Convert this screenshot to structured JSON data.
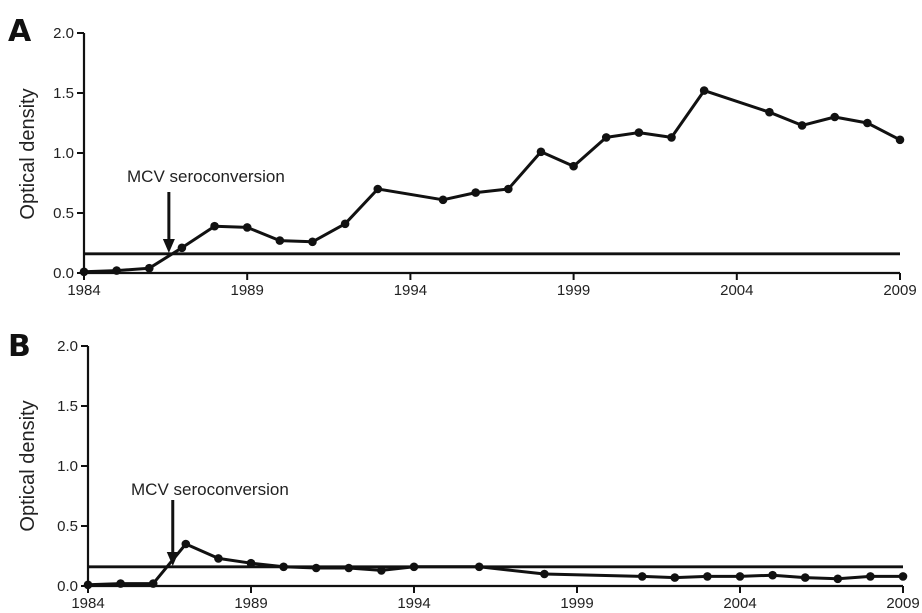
{
  "figure": {
    "panels": [
      {
        "letter": "A",
        "ylabel": "Optical density",
        "annotation": "MCV seroconversion"
      },
      {
        "letter": "B",
        "ylabel": "Optical density",
        "annotation": "MCV seroconversion"
      }
    ]
  },
  "chart_data": [
    {
      "type": "line",
      "panel": "A",
      "title": "",
      "xlabel": "",
      "ylabel": "Optical density",
      "xlim": [
        1984,
        2009
      ],
      "ylim": [
        0,
        2.0
      ],
      "x_ticks": [
        1984,
        1989,
        1994,
        1999,
        2004,
        2009
      ],
      "y_ticks": [
        0.0,
        0.5,
        1.0,
        1.5,
        2.0
      ],
      "x_tick_labels": [
        "1984",
        "1989",
        "1994",
        "1999",
        "2004",
        "2009"
      ],
      "y_tick_labels": [
        "0.0",
        "0.5",
        "1.0",
        "1.5",
        "2.0"
      ],
      "grid": false,
      "threshold": 0.16,
      "annotation": {
        "text": "MCV seroconversion",
        "x": 1986.6
      },
      "series": [
        {
          "x": [
            1984,
            1985,
            1986,
            1987,
            1988,
            1989,
            1990,
            1991,
            1992,
            1993,
            1995,
            1996,
            1997,
            1998,
            1999,
            2000,
            2001,
            2002,
            2003,
            2005,
            2006,
            2007,
            2008,
            2009
          ],
          "y": [
            0.01,
            0.02,
            0.04,
            0.21,
            0.39,
            0.38,
            0.27,
            0.26,
            0.41,
            0.7,
            0.61,
            0.67,
            0.7,
            1.01,
            0.89,
            1.13,
            1.17,
            1.13,
            1.52,
            1.34,
            1.23,
            1.3,
            1.25,
            1.11
          ]
        }
      ]
    },
    {
      "type": "line",
      "panel": "B",
      "title": "",
      "xlabel": "",
      "ylabel": "Optical density",
      "xlim": [
        1984,
        2009
      ],
      "ylim": [
        0,
        2.0
      ],
      "x_ticks": [
        1984,
        1989,
        1994,
        1999,
        2004,
        2009
      ],
      "y_ticks": [
        0.0,
        0.5,
        1.0,
        1.5,
        2.0
      ],
      "x_tick_labels": [
        "1984",
        "1989",
        "1994",
        "1999",
        "2004",
        "2009"
      ],
      "y_tick_labels": [
        "0.0",
        "0.5",
        "1.0",
        "1.5",
        "2.0"
      ],
      "grid": false,
      "threshold": 0.16,
      "annotation": {
        "text": "MCV seroconversion",
        "x": 1986.6
      },
      "series": [
        {
          "x": [
            1984,
            1985,
            1986,
            1987,
            1988,
            1989,
            1990,
            1991,
            1992,
            1993,
            1994,
            1996,
            1998,
            2001,
            2002,
            2003,
            2004,
            2005,
            2006,
            2007,
            2008,
            2009
          ],
          "y": [
            0.01,
            0.02,
            0.02,
            0.35,
            0.23,
            0.19,
            0.16,
            0.15,
            0.15,
            0.13,
            0.16,
            0.16,
            0.1,
            0.08,
            0.07,
            0.08,
            0.08,
            0.09,
            0.07,
            0.06,
            0.08,
            0.08
          ]
        }
      ]
    }
  ]
}
